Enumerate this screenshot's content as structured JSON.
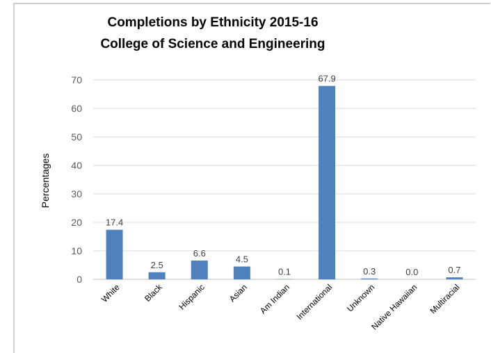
{
  "chart_data": {
    "type": "bar",
    "title_lines": [
      "Completions by Ethnicity 2015-16",
      "College of Science and Engineering"
    ],
    "ylabel": "Percentages",
    "xlabel": "",
    "categories": [
      "White",
      "Black",
      "Hispanic",
      "Asian",
      "Am Indian",
      "International",
      "Unknown",
      "Native Hawaiian",
      "Multiracial"
    ],
    "values": [
      17.4,
      2.5,
      6.6,
      4.5,
      0.1,
      67.9,
      0.3,
      0.0,
      0.7
    ],
    "data_labels": [
      "17.4",
      "2.5",
      "6.6",
      "4.5",
      "0.1",
      "67.9",
      "0.3",
      "0.0",
      "0.7"
    ],
    "ylim": [
      0,
      70
    ],
    "yticks": [
      "0",
      "10",
      "20",
      "30",
      "40",
      "50",
      "60",
      "70"
    ],
    "grid": true,
    "bar_color": "#4f81bd",
    "grid_color": "#d9d9d9"
  }
}
